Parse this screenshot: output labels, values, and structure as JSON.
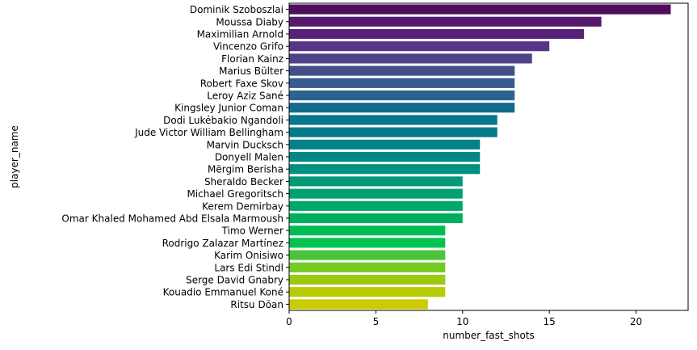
{
  "chart_data": {
    "type": "bar",
    "orientation": "horizontal",
    "xlabel": "number_fast_shots",
    "ylabel": "player_name",
    "xlim": [
      0,
      23
    ],
    "xticks": [
      0,
      5,
      10,
      15,
      20
    ],
    "grid": false,
    "categories": [
      "Dominik Szoboszlai",
      "Moussa Diaby",
      "Maximilian Arnold",
      "Vincenzo Grifo",
      "Florian Kainz",
      "Marius Bülter",
      "Robert Faxe Skov",
      "Leroy Aziz Sané",
      "Kingsley Junior Coman",
      "Dodi Lukébakio Ngandoli",
      "Jude Victor William Bellingham",
      "Marvin Ducksch",
      "Donyell Malen",
      "Mërgim Berisha",
      "Sheraldo Becker",
      "Michael Gregoritsch",
      "Kerem Demirbay",
      "Omar Khaled Mohamed Abd Elsala Marmoush",
      "Timo Werner",
      "Rodrigo Zalazar Martínez",
      "Karim Onisiwo",
      "Lars Edi Stindl",
      "Serge David Gnabry",
      "Kouadio Emmanuel Koné",
      "Ritsu Dōan"
    ],
    "values": [
      22,
      18,
      17,
      15,
      14,
      13,
      13,
      13,
      13,
      12,
      12,
      11,
      11,
      11,
      10,
      10,
      10,
      10,
      9,
      9,
      9,
      9,
      9,
      9,
      8
    ],
    "colors": [
      "#4f0e5d",
      "#551a6c",
      "#56217a",
      "#573586",
      "#4e4288",
      "#434e8a",
      "#375b8c",
      "#2a648e",
      "#146b8c",
      "#08768d",
      "#047a8b",
      "#03828a",
      "#028786",
      "#02917f",
      "#009877",
      "#00a071",
      "#00a86a",
      "#00ae60",
      "#00bc57",
      "#00c550",
      "#4ac43a",
      "#76c823",
      "#9cc812",
      "#b7cb05",
      "#cbcb00"
    ]
  }
}
